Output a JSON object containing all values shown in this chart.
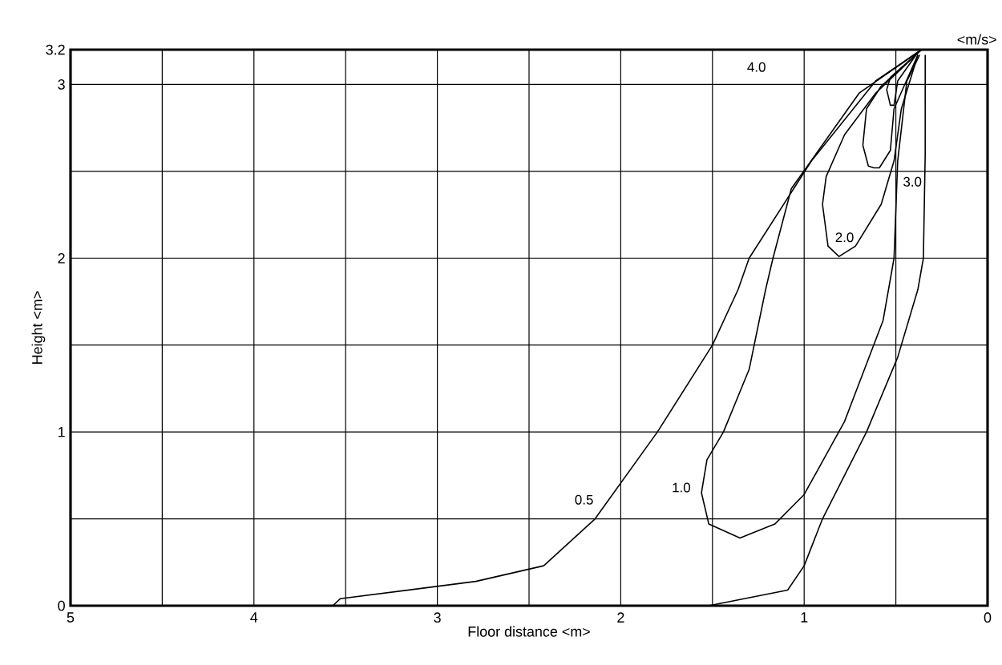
{
  "chart_data": {
    "type": "line",
    "xlabel": "Floor distance <m>",
    "ylabel": "Height <m>",
    "xlim": [
      5,
      0
    ],
    "ylim": [
      0,
      3.2
    ],
    "xticks": [
      5,
      {
        "value": 4.5,
        "label": null
      },
      4,
      {
        "value": 3.5,
        "label": null
      },
      3,
      {
        "value": 2.5,
        "label": null
      },
      2,
      {
        "value": 1.5,
        "label": null
      },
      1,
      {
        "value": 0.5,
        "label": null
      },
      0
    ],
    "yticks": [
      0,
      {
        "value": 0.5,
        "label": null
      },
      1,
      {
        "value": 1.5,
        "label": null
      },
      2,
      {
        "value": 2.5,
        "label": null
      },
      3,
      3.2
    ],
    "grid": true,
    "marker": "none",
    "line_style": "solid",
    "series": [
      {
        "color": "#000000",
        "x": [
          0.36,
          0.61,
          0.96,
          1.3,
          1.36,
          1.5,
          1.8,
          2.14,
          2.42,
          2.79,
          3.53,
          3.57,
          1.52,
          1.09,
          1.0,
          0.9,
          0.66,
          0.49,
          0.38,
          0.35,
          0.34,
          0.34
        ],
        "values": [
          3.2,
          3.02,
          2.56,
          2.0,
          1.82,
          1.5,
          1.0,
          0.5,
          0.23,
          0.14,
          0.04,
          0,
          0,
          0.09,
          0.23,
          0.5,
          1.0,
          1.43,
          1.82,
          2.0,
          2.6,
          3.17
        ]
      },
      {
        "color": "#000000",
        "x": [
          0.36,
          0.7,
          1.07,
          1.17,
          1.21,
          1.3,
          1.44,
          1.53,
          1.56,
          1.52,
          1.35,
          1.16,
          1.0,
          0.78,
          0.57,
          0.51,
          0.49,
          0.44,
          0.37
        ],
        "values": [
          3.2,
          2.95,
          2.4,
          2.0,
          1.82,
          1.36,
          1.0,
          0.84,
          0.65,
          0.47,
          0.39,
          0.47,
          0.64,
          1.06,
          1.64,
          2.0,
          2.56,
          3.02,
          3.17
        ]
      },
      {
        "color": "#000000",
        "x": [
          0.36,
          0.61,
          0.78,
          0.88,
          0.9,
          0.87,
          0.81,
          0.72,
          0.58,
          0.51,
          0.47,
          0.38
        ],
        "values": [
          3.2,
          2.95,
          2.71,
          2.47,
          2.31,
          2.07,
          2.01,
          2.07,
          2.31,
          2.56,
          2.86,
          3.17
        ]
      },
      {
        "color": "#000000",
        "x": [
          0.36,
          0.58,
          0.66,
          0.68,
          0.65,
          0.62,
          0.59,
          0.53,
          0.51,
          0.38
        ],
        "values": [
          3.2,
          2.99,
          2.86,
          2.65,
          2.53,
          2.52,
          2.52,
          2.62,
          2.86,
          3.17
        ]
      },
      {
        "color": "#000000",
        "x": [
          0.36,
          0.53,
          0.55,
          0.53,
          0.52,
          0.51,
          0.49,
          0.39
        ],
        "values": [
          3.2,
          3.04,
          2.97,
          2.88,
          2.88,
          2.88,
          3.02,
          3.17
        ]
      }
    ],
    "annotations": [
      "<m/s>",
      {
        "text": "4.0",
        "x": 1.26,
        "y": 3.1
      },
      {
        "text": "3.0",
        "x": 0.41,
        "y": 2.44
      },
      {
        "text": "2.0",
        "x": 0.78,
        "y": 2.12
      },
      {
        "text": "1.0",
        "x": 1.67,
        "y": 0.68
      },
      {
        "text": "0.5",
        "x": 2.2,
        "y": 0.61
      }
    ]
  }
}
